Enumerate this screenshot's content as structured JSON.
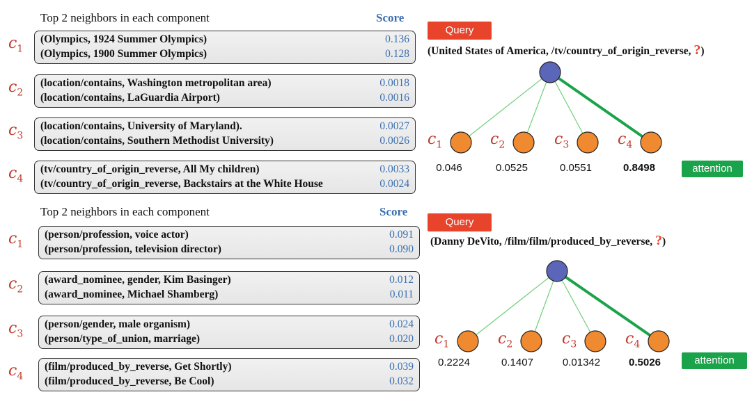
{
  "panels": [
    {
      "heading": "Top 2 neighbors in each component",
      "score_header": "Score",
      "components": [
        {
          "label": "c",
          "sub": "1",
          "rows": [
            {
              "text": "(Olympics, 1924 Summer Olympics)",
              "score": "0.136"
            },
            {
              "text": "(Olympics, 1900 Summer Olympics)",
              "score": "0.128"
            }
          ]
        },
        {
          "label": "c",
          "sub": "2",
          "rows": [
            {
              "text": "(location/contains, Washington metropolitan area)",
              "score": "0.0018"
            },
            {
              "text": "(location/contains, LaGuardia Airport)",
              "score": "0.0016"
            }
          ]
        },
        {
          "label": "c",
          "sub": "3",
          "rows": [
            {
              "text": "(location/contains, University of Maryland).",
              "score": "0.0027"
            },
            {
              "text": "(location/contains, Southern Methodist University)",
              "score": "0.0026"
            }
          ]
        },
        {
          "label": "c",
          "sub": "4",
          "rows": [
            {
              "text": "(tv/country_of_origin_reverse, All My children)",
              "score": "0.0033"
            },
            {
              "text": "(tv/country_of_origin_reverse, Backstairs at the White House",
              "score": "0.0024"
            }
          ]
        }
      ],
      "query_label": "Query",
      "query_triple": "(United States of America, /tv/country_of_origin_reverse,",
      "query_close": ")",
      "query_mark": "?",
      "attention_label": "attention",
      "weights": [
        "0.046",
        "0.0525",
        "0.0551",
        "0.8498"
      ],
      "node_labels": [
        {
          "label": "c",
          "sub": "1"
        },
        {
          "label": "c",
          "sub": "2"
        },
        {
          "label": "c",
          "sub": "3"
        },
        {
          "label": "c",
          "sub": "4"
        }
      ],
      "highlight_index": 3
    },
    {
      "heading": "Top 2 neighbors in each component",
      "score_header": "Score",
      "components": [
        {
          "label": "c",
          "sub": "1",
          "rows": [
            {
              "text": "(person/profession, voice actor)",
              "score": "0.091"
            },
            {
              "text": "(person/profession, television director)",
              "score": "0.090"
            }
          ]
        },
        {
          "label": "c",
          "sub": "2",
          "rows": [
            {
              "text": "(award_nominee, gender, Kim Basinger)",
              "score": "0.012"
            },
            {
              "text": "(award_nominee, Michael Shamberg)",
              "score": "0.011"
            }
          ]
        },
        {
          "label": "c",
          "sub": "3",
          "rows": [
            {
              "text": "(person/gender, male organism)",
              "score": "0.024"
            },
            {
              "text": "(person/type_of_union, marriage)",
              "score": "0.020"
            }
          ]
        },
        {
          "label": "c",
          "sub": "4",
          "rows": [
            {
              "text": "(film/produced_by_reverse, Get Shortly)",
              "score": "0.039"
            },
            {
              "text": "(film/produced_by_reverse, Be Cool)",
              "score": "0.032"
            }
          ]
        }
      ],
      "query_label": "Query",
      "query_triple": "(Danny DeVito, /film/film/produced_by_reverse,",
      "query_close": ")",
      "query_mark": "?",
      "attention_label": "attention",
      "weights": [
        "0.2224",
        "0.1407",
        "0.01342",
        "0.5026"
      ],
      "node_labels": [
        {
          "label": "c",
          "sub": "1"
        },
        {
          "label": "c",
          "sub": "2"
        },
        {
          "label": "c",
          "sub": "3"
        },
        {
          "label": "c",
          "sub": "4"
        }
      ],
      "highlight_index": 3
    }
  ],
  "colors": {
    "root_node": "#5b66b8",
    "child_node": "#f08a30",
    "edge_thin": "#6fcf7a",
    "edge_strong": "#1aa34a",
    "query_button": "#e8442b",
    "attention_button": "#1aa34a",
    "score_text": "#3a6fb0",
    "component_label": "#c0392b"
  }
}
